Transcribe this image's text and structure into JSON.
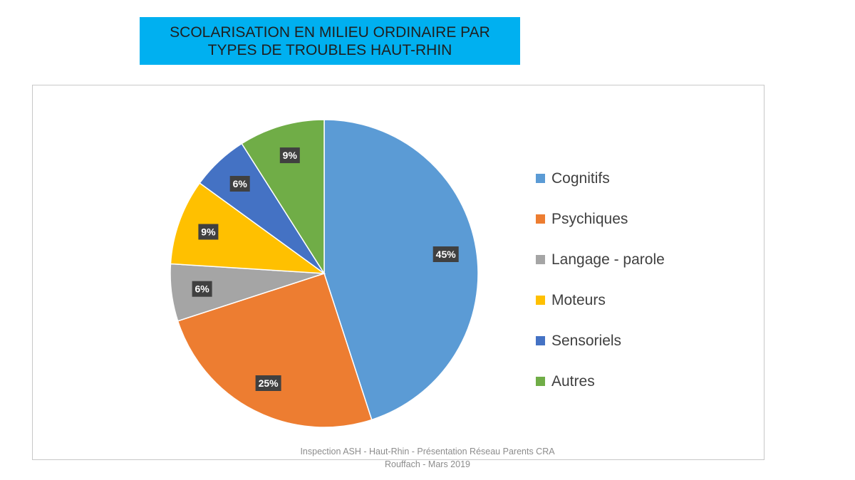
{
  "title": {
    "line1": "SCOLARISATION EN MILIEU ORDINAIRE PAR",
    "line2": "TYPES DE TROUBLES HAUT-RHIN"
  },
  "chart_data": {
    "type": "pie",
    "legend_position": "right",
    "slices": [
      {
        "name": "Cognitifs",
        "value": 45,
        "label": "45%",
        "color": "#5b9bd5"
      },
      {
        "name": "Psychiques",
        "value": 25,
        "label": "25%",
        "color": "#ed7d31"
      },
      {
        "name": "Langage - parole",
        "value": 6,
        "label": "6%",
        "color": "#a5a5a5"
      },
      {
        "name": "Moteurs",
        "value": 9,
        "label": "9%",
        "color": "#ffc000"
      },
      {
        "name": "Sensoriels",
        "value": 6,
        "label": "6%",
        "color": "#4472c4"
      },
      {
        "name": "Autres",
        "value": 9,
        "label": "9%",
        "color": "#70ad47"
      }
    ]
  },
  "footer": {
    "line1": "Inspection ASH - Haut-Rhin - Présentation Réseau Parents CRA",
    "line2": "Rouffach - Mars 2019"
  }
}
